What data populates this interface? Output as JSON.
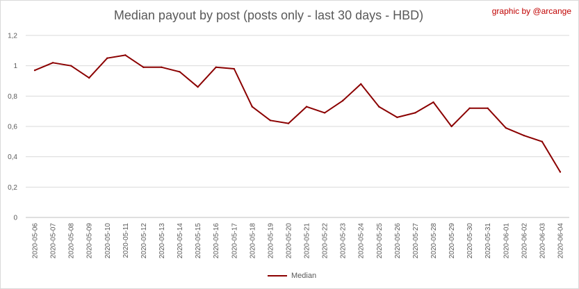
{
  "credit": "graphic by @arcange",
  "chart_data": {
    "type": "line",
    "title": "Median payout by post (posts only - last 30 days - HBD)",
    "xlabel": "",
    "ylabel": "",
    "categories": [
      "2020-05-06",
      "2020-05-07",
      "2020-05-08",
      "2020-05-09",
      "2020-05-10",
      "2020-05-11",
      "2020-05-12",
      "2020-05-13",
      "2020-05-14",
      "2020-05-15",
      "2020-05-16",
      "2020-05-17",
      "2020-05-18",
      "2020-05-19",
      "2020-05-20",
      "2020-05-21",
      "2020-05-22",
      "2020-05-23",
      "2020-05-24",
      "2020-05-25",
      "2020-05-26",
      "2020-05-27",
      "2020-05-28",
      "2020-05-29",
      "2020-05-30",
      "2020-05-31",
      "2020-06-01",
      "2020-06-02",
      "2020-06-03",
      "2020-06-04"
    ],
    "series": [
      {
        "name": "Median",
        "color": "#8b0000",
        "values": [
          0.97,
          1.02,
          1.0,
          0.92,
          1.05,
          1.07,
          0.99,
          0.99,
          0.96,
          0.86,
          0.99,
          0.98,
          0.73,
          0.64,
          0.62,
          0.73,
          0.69,
          0.77,
          0.88,
          0.73,
          0.66,
          0.69,
          0.76,
          0.6,
          0.72,
          0.72,
          0.59,
          0.54,
          0.5,
          0.3
        ]
      }
    ],
    "ylim": [
      0,
      1.2
    ],
    "yticks": [
      "0",
      "0,2",
      "0,4",
      "0,6",
      "0,8",
      "1",
      "1,2"
    ],
    "grid": true,
    "legend": "bottom"
  }
}
